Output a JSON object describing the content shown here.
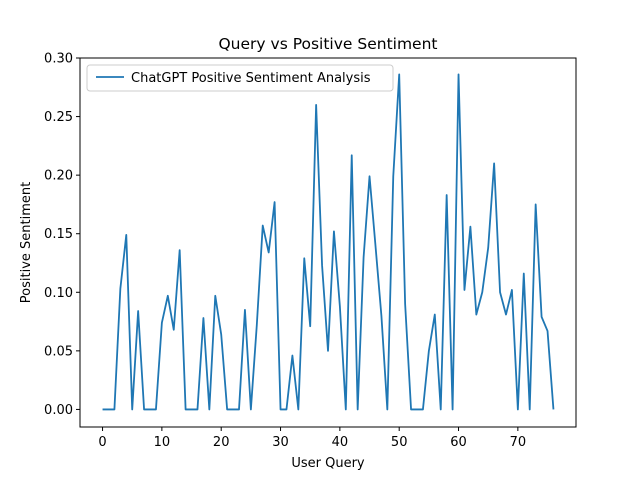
{
  "chart_data": {
    "type": "line",
    "title": "Query vs Positive Sentiment",
    "xlabel": "User Query",
    "ylabel": "Positive Sentiment",
    "xlim": [
      -3.8,
      79.8
    ],
    "ylim": [
      -0.015,
      0.3
    ],
    "xticks": [
      0,
      10,
      20,
      30,
      40,
      50,
      60,
      70
    ],
    "xtick_labels": [
      "0",
      "10",
      "20",
      "30",
      "40",
      "50",
      "60",
      "70"
    ],
    "yticks": [
      0.0,
      0.05,
      0.1,
      0.15,
      0.2,
      0.25,
      0.3
    ],
    "ytick_labels": [
      "0.00",
      "0.05",
      "0.10",
      "0.15",
      "0.20",
      "0.25",
      "0.30"
    ],
    "grid": false,
    "legend_position": "top-left",
    "series": [
      {
        "name": "ChatGPT Positive Sentiment Analysis",
        "color": "#1f77b4",
        "x": [
          0,
          1,
          2,
          3,
          4,
          5,
          6,
          7,
          8,
          9,
          10,
          11,
          12,
          13,
          14,
          15,
          16,
          17,
          18,
          19,
          20,
          21,
          22,
          23,
          24,
          25,
          26,
          27,
          28,
          29,
          30,
          31,
          32,
          33,
          34,
          35,
          36,
          37,
          38,
          39,
          40,
          41,
          42,
          43,
          44,
          45,
          46,
          47,
          48,
          49,
          50,
          51,
          52,
          53,
          54,
          55,
          56,
          57,
          58,
          59,
          60,
          61,
          62,
          63,
          64,
          65,
          66,
          67,
          68,
          69,
          70,
          71,
          72,
          73,
          74,
          75,
          76
        ],
        "values": [
          0,
          0,
          0,
          0.103,
          0.149,
          0,
          0.084,
          0,
          0,
          0,
          0.074,
          0.097,
          0.068,
          0.136,
          0,
          0,
          0,
          0.078,
          0,
          0.097,
          0.064,
          0,
          0,
          0,
          0.085,
          0,
          0.072,
          0.157,
          0.134,
          0.177,
          0,
          0,
          0.046,
          0,
          0.129,
          0.071,
          0.26,
          0.123,
          0.05,
          0.152,
          0.088,
          0,
          0.217,
          0,
          0.13,
          0.199,
          0.14,
          0.08,
          0,
          0.199,
          0.286,
          0.09,
          0,
          0,
          0,
          0.05,
          0.081,
          0,
          0.183,
          0,
          0.286,
          0.102,
          0.156,
          0.081,
          0.1,
          0.138,
          0.21,
          0.1,
          0.081,
          0.102,
          0,
          0.116,
          0,
          0.175,
          0.079,
          0.067,
          0
        ]
      }
    ]
  }
}
